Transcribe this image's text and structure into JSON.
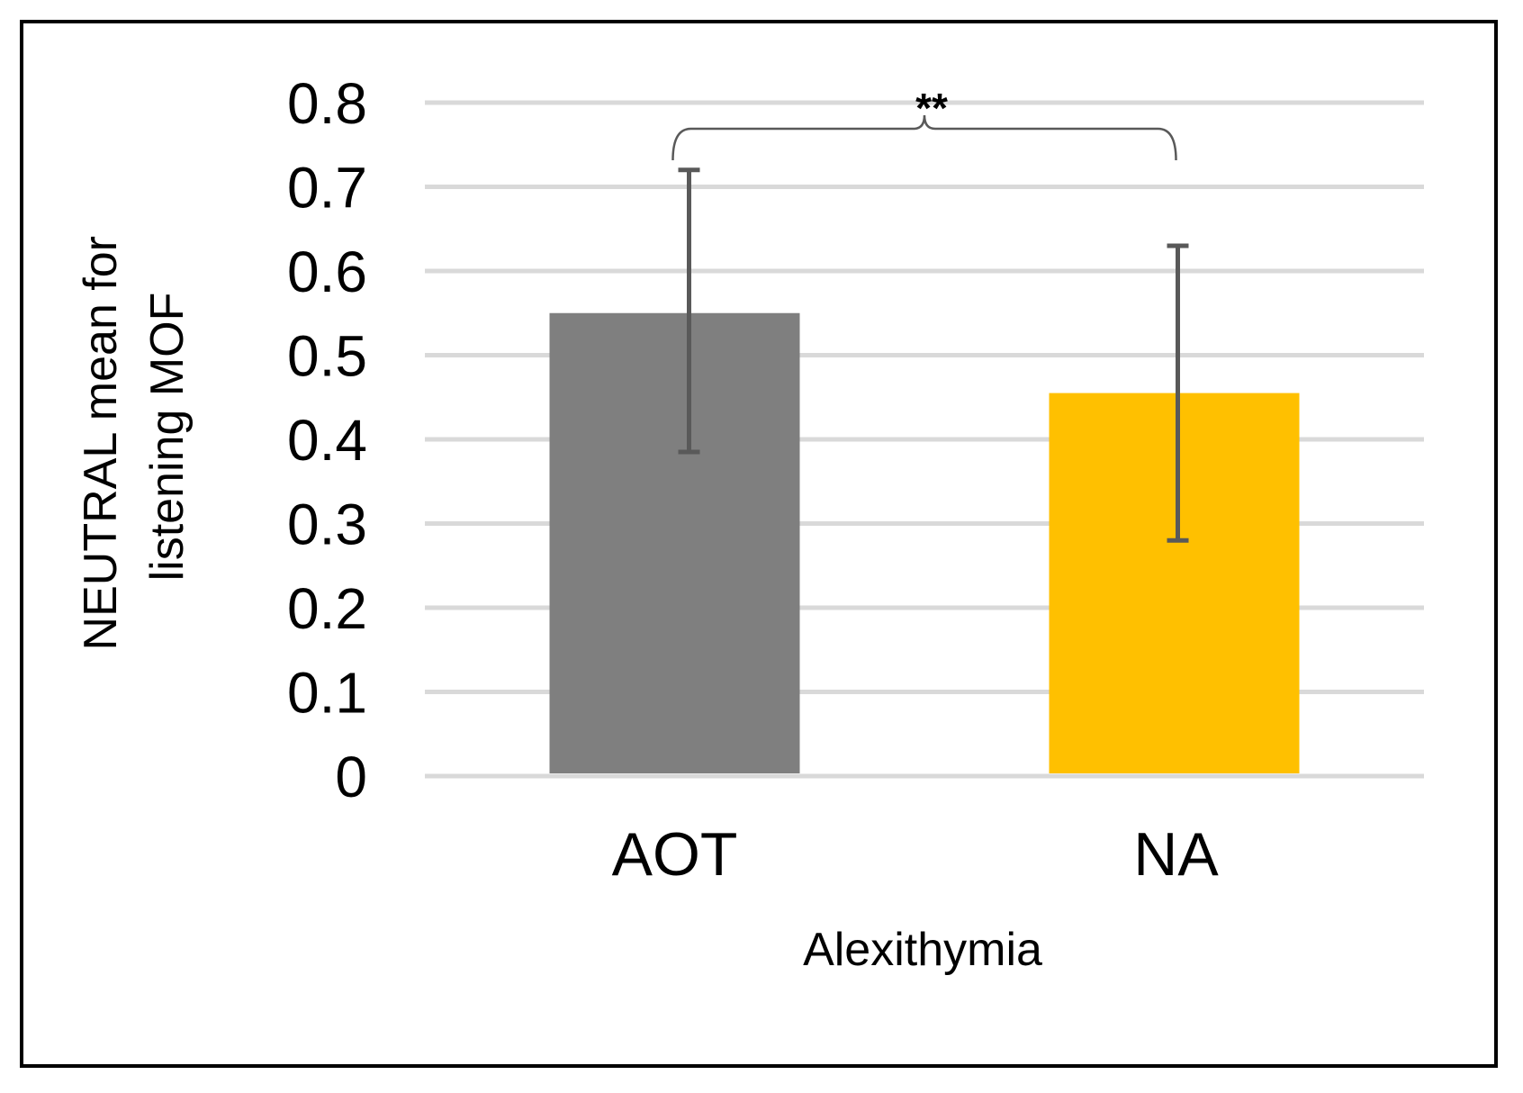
{
  "chart_data": {
    "type": "bar",
    "categories": [
      "AOT",
      "NA"
    ],
    "values": [
      0.55,
      0.455
    ],
    "error_upper": [
      0.72,
      0.63
    ],
    "error_lower": [
      0.385,
      0.28
    ],
    "colors": [
      "#7f7f7f",
      "#ffc000"
    ],
    "title": "",
    "xlabel": "Alexithymia",
    "ylabel_lines": [
      "NEUTRAL mean for",
      "listening MOF"
    ],
    "ylim": [
      0,
      0.8
    ],
    "yticks": [
      "0",
      "0.1",
      "0.2",
      "0.3",
      "0.4",
      "0.5",
      "0.6",
      "0.7",
      "0.8"
    ],
    "grid": true,
    "annotation": {
      "text": "**",
      "between": [
        "AOT",
        "NA"
      ]
    }
  },
  "colors": {
    "gridline": "#d9d9d9",
    "error_bar": "#595959",
    "frame": "#000000"
  }
}
